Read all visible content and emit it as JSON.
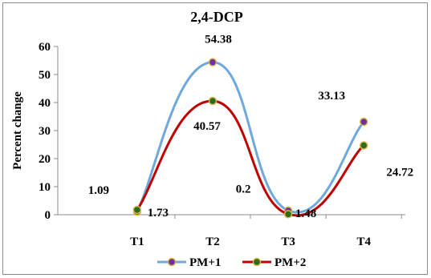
{
  "chart_data": {
    "type": "line",
    "title": "2,4-DCP",
    "xlabel": "",
    "ylabel": "Percent change",
    "categories": [
      "T1",
      "T2",
      "T3",
      "T4"
    ],
    "ylim": [
      0,
      60
    ],
    "yticks": [
      0,
      10,
      20,
      30,
      40,
      50,
      60
    ],
    "grid": false,
    "legend_position": "bottom",
    "series": [
      {
        "name": "PM+1",
        "values": [
          1.09,
          54.38,
          1.48,
          33.13
        ],
        "labels": [
          "1.09",
          "54.38",
          "1.48",
          "33.13"
        ],
        "line_color": "#6fa8dc",
        "marker_color": "#7030a0"
      },
      {
        "name": "PM+2",
        "values": [
          1.73,
          40.57,
          0.2,
          24.72
        ],
        "labels": [
          "1.73",
          "40.57",
          "0.2",
          "24.72"
        ],
        "line_color": "#c00000",
        "marker_color": "#2e6b1f"
      }
    ]
  }
}
